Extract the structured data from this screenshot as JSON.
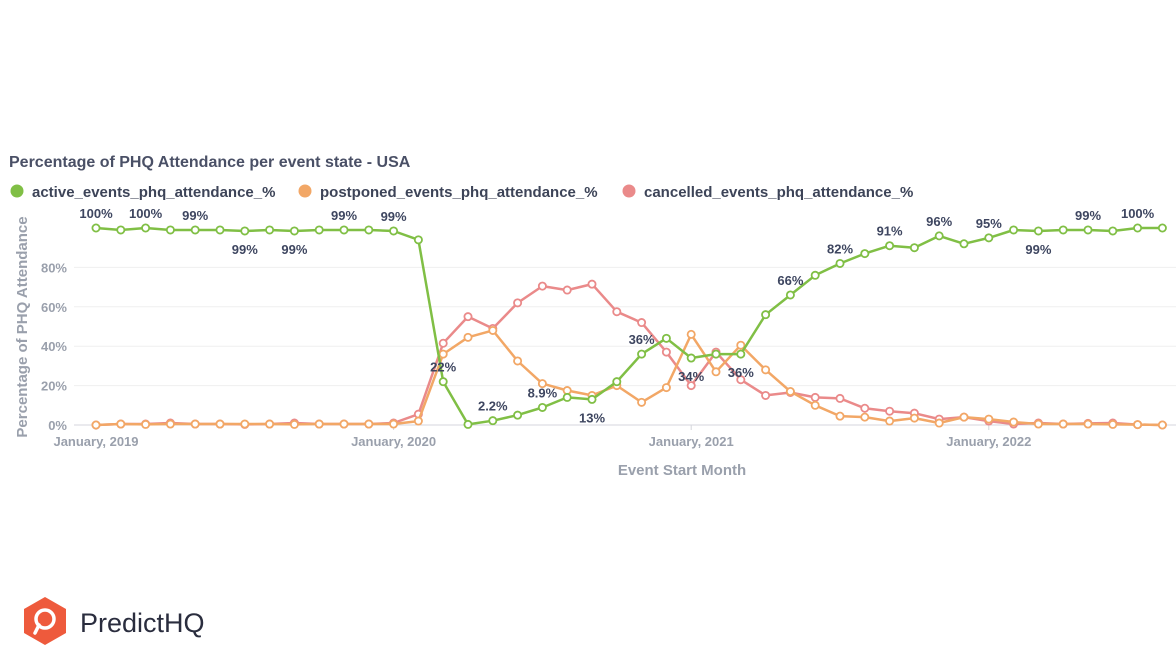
{
  "chart_data": {
    "type": "line",
    "title": "Percentage of PHQ Attendance per event state - USA",
    "xlabel": "Event Start Month",
    "ylabel": "Percentage of PHQ Attendance",
    "ylim": [
      0,
      100
    ],
    "y_ticks": [
      "0%",
      "20%",
      "40%",
      "60%",
      "80%"
    ],
    "x_ticks": [
      {
        "index": 0,
        "label": "January, 2019"
      },
      {
        "index": 12,
        "label": "January, 2020"
      },
      {
        "index": 24,
        "label": "January, 2021"
      },
      {
        "index": 36,
        "label": "January, 2022"
      }
    ],
    "legend_position": "top-left",
    "series": [
      {
        "name": "active_events_phq_attendance_%",
        "color": "#80bf45",
        "values": [
          100,
          99,
          100,
          99,
          99,
          99,
          98.5,
          99,
          98.5,
          99,
          99,
          99,
          98.5,
          94,
          22,
          0.3,
          2.2,
          5,
          8.9,
          14,
          13,
          22,
          36,
          44,
          34,
          36,
          36,
          56,
          66,
          76,
          82,
          87,
          91,
          90,
          96,
          92,
          95,
          99,
          98.5,
          99,
          99,
          98.5,
          100,
          100
        ],
        "labels": [
          {
            "index": 0,
            "text": "100%",
            "position": "above"
          },
          {
            "index": 2,
            "text": "100%",
            "position": "above"
          },
          {
            "index": 4,
            "text": "99%",
            "position": "above"
          },
          {
            "index": 6,
            "text": "99%",
            "position": "below"
          },
          {
            "index": 8,
            "text": "99%",
            "position": "below"
          },
          {
            "index": 10,
            "text": "99%",
            "position": "above"
          },
          {
            "index": 12,
            "text": "99%",
            "position": "above"
          },
          {
            "index": 14,
            "text": "22%",
            "position": "above"
          },
          {
            "index": 16,
            "text": "2.2%",
            "position": "above"
          },
          {
            "index": 18,
            "text": "8.9%",
            "position": "above"
          },
          {
            "index": 20,
            "text": "13%",
            "position": "below"
          },
          {
            "index": 22,
            "text": "36%",
            "position": "above"
          },
          {
            "index": 24,
            "text": "34%",
            "position": "below"
          },
          {
            "index": 26,
            "text": "36%",
            "position": "below"
          },
          {
            "index": 28,
            "text": "66%",
            "position": "above"
          },
          {
            "index": 30,
            "text": "82%",
            "position": "above"
          },
          {
            "index": 32,
            "text": "91%",
            "position": "above"
          },
          {
            "index": 34,
            "text": "96%",
            "position": "above"
          },
          {
            "index": 36,
            "text": "95%",
            "position": "above"
          },
          {
            "index": 38,
            "text": "99%",
            "position": "below"
          },
          {
            "index": 40,
            "text": "99%",
            "position": "above"
          },
          {
            "index": 42,
            "text": "100%",
            "position": "above"
          }
        ]
      },
      {
        "name": "postponed_events_phq_attendance_%",
        "color": "#f2a766",
        "values": [
          0,
          0.5,
          0.3,
          0.5,
          0.5,
          0.5,
          0.5,
          0.5,
          0.3,
          0.5,
          0.5,
          0.5,
          0.5,
          2,
          36,
          44.5,
          48,
          32.5,
          21,
          17.5,
          15,
          20,
          11.5,
          19,
          46,
          27,
          40.5,
          28,
          17,
          10,
          4.5,
          4,
          2,
          3.5,
          1,
          4,
          3,
          1.5,
          0.5,
          0.5,
          0.5,
          0.3,
          0.2,
          0
        ]
      },
      {
        "name": "cancelled_events_phq_attendance_%",
        "color": "#ea8a8a",
        "values": [
          0,
          0.5,
          0.5,
          1,
          0.5,
          0.5,
          0.3,
          0.5,
          1,
          0.5,
          0.5,
          0.5,
          1,
          5.5,
          41.5,
          55,
          49,
          62,
          70.5,
          68.5,
          71.5,
          57.5,
          52,
          37,
          20,
          37,
          23,
          15,
          16.5,
          14,
          13.5,
          8.5,
          7,
          6,
          3,
          4,
          2,
          0.5,
          1,
          0.5,
          0.8,
          1,
          0.2,
          0
        ]
      }
    ]
  },
  "branding": {
    "name": "PredictHQ",
    "logo_color": "#ee5a3c"
  }
}
